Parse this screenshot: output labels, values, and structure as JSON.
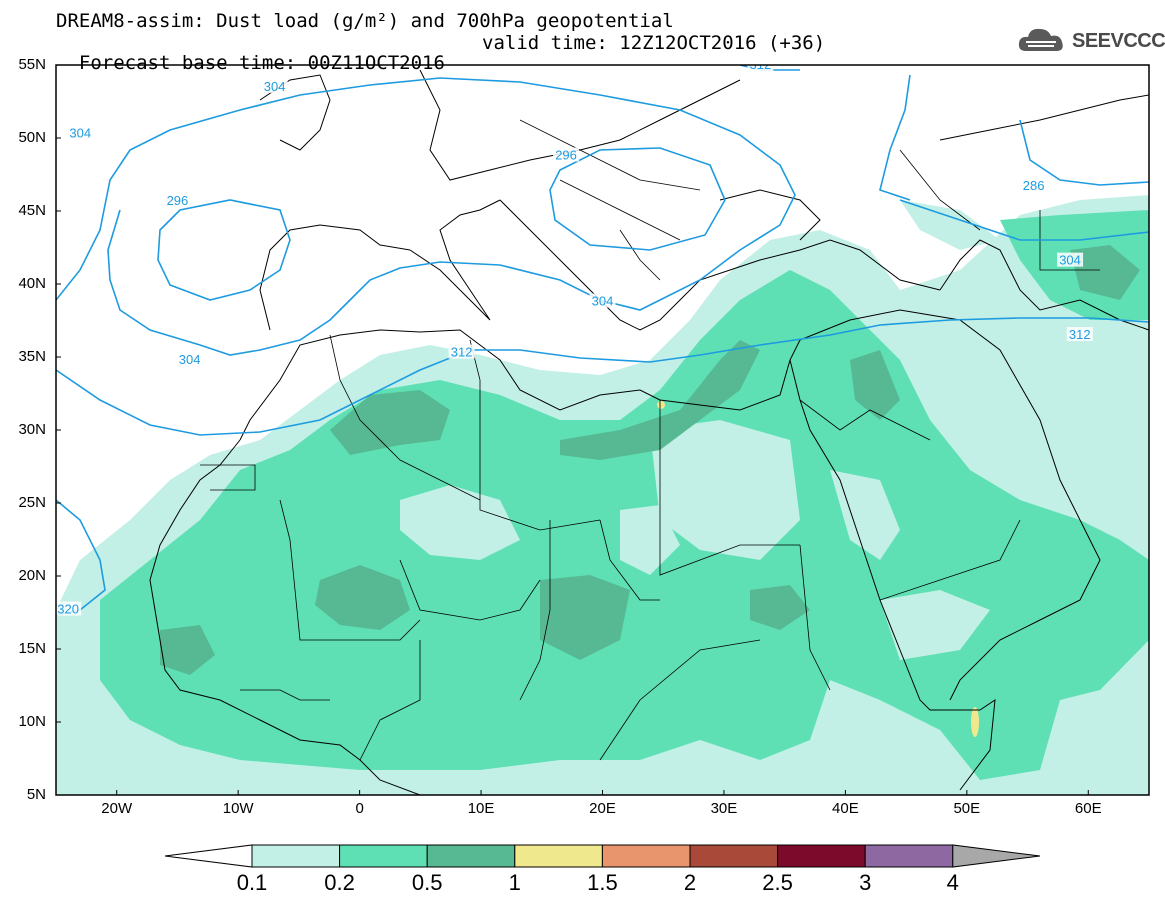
{
  "title": {
    "line1": "DREAM8-assim: Dust load (g/m²) and 700hPa geopotential",
    "line2_left": "Forecast base time: 00Z11OCT2016",
    "line2_right": "valid time: 12Z12OCT2016 (+36)"
  },
  "logo": {
    "text": "SEEVCCC",
    "icon": "cloud-logo-icon"
  },
  "map": {
    "lon_range": [
      -25,
      65
    ],
    "lat_range": [
      5,
      55
    ],
    "lat_labels": [
      "55N",
      "50N",
      "45N",
      "40N",
      "35N",
      "30N",
      "25N",
      "20N",
      "15N",
      "10N",
      "5N"
    ],
    "lon_labels": [
      "20W",
      "10W",
      "0",
      "10E",
      "20E",
      "30E",
      "40E",
      "50E",
      "60E"
    ],
    "contour_color": "#1e9be0",
    "contour_labels": [
      {
        "text": "304",
        "lon": -7,
        "lat": 53.5
      },
      {
        "text": "304",
        "lon": -23,
        "lat": 50.3
      },
      {
        "text": "296",
        "lon": 17,
        "lat": 48.8
      },
      {
        "text": "296",
        "lon": -15,
        "lat": 45.7
      },
      {
        "text": "312",
        "lon": 33,
        "lat": 55
      },
      {
        "text": "286",
        "lon": 55.5,
        "lat": 46.7
      },
      {
        "text": "304",
        "lon": 58.5,
        "lat": 41.6
      },
      {
        "text": "304",
        "lon": 20,
        "lat": 38.8
      },
      {
        "text": "312",
        "lon": 59.3,
        "lat": 36.5
      },
      {
        "text": "312",
        "lon": 8.4,
        "lat": 35.3
      },
      {
        "text": "304",
        "lon": -14,
        "lat": 34.8
      },
      {
        "text": "320",
        "lon": -24,
        "lat": 17.7
      }
    ]
  },
  "colorbar": {
    "labels": [
      "0.1",
      "0.2",
      "0.5",
      "1",
      "1.5",
      "2",
      "2.5",
      "3",
      "4"
    ],
    "colors": [
      "#ffffff",
      "#c2f0e6",
      "#5ee0b4",
      "#56b993",
      "#f0e88c",
      "#e8946c",
      "#a8493a",
      "#7c0a2a",
      "#8e68a0",
      "#a8a8a8"
    ]
  }
}
